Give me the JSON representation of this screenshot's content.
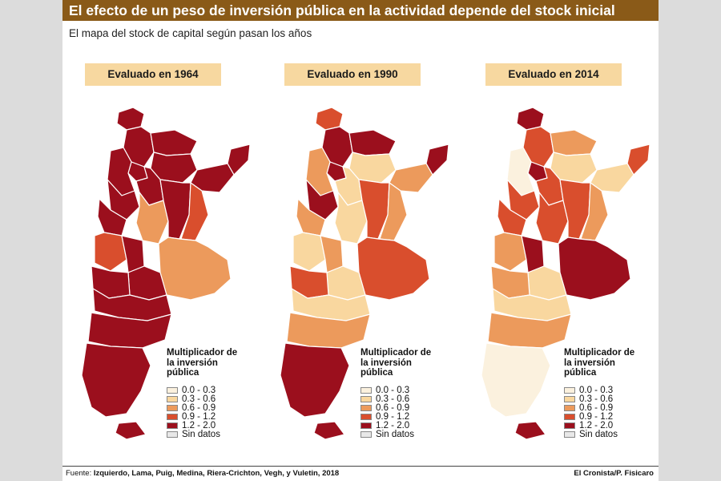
{
  "title": "El efecto de un peso de inversión pública en la actividad depende del stock inicial",
  "subtitle": "El mapa del stock de capital según pasan los años",
  "legend": {
    "title": "Multiplicador de la inversión pública",
    "items": [
      {
        "label": "0.0 - 0.3",
        "color": "#fbf1de"
      },
      {
        "label": "0.3 - 0.6",
        "color": "#f9d79f"
      },
      {
        "label": "0.6 - 0.9",
        "color": "#ec9a5c"
      },
      {
        "label": "0.9 - 1.2",
        "color": "#d94e2d"
      },
      {
        "label": "1.2 - 2.0",
        "color": "#9b0f1d"
      },
      {
        "label": "Sin datos",
        "color": "#e8e8e8"
      }
    ]
  },
  "panels": [
    {
      "label": "Evaluado en 1964"
    },
    {
      "label": "Evaluado en 1990"
    },
    {
      "label": "Evaluado en 2014"
    }
  ],
  "footer": {
    "source_prefix": "Fuente:",
    "source": "Izquierdo, Lama, Puig, Medina, Riera-Crichton, Vegh, y Vuletin, 2018",
    "credit": "El Cronista/P. Fisicaro"
  }
}
